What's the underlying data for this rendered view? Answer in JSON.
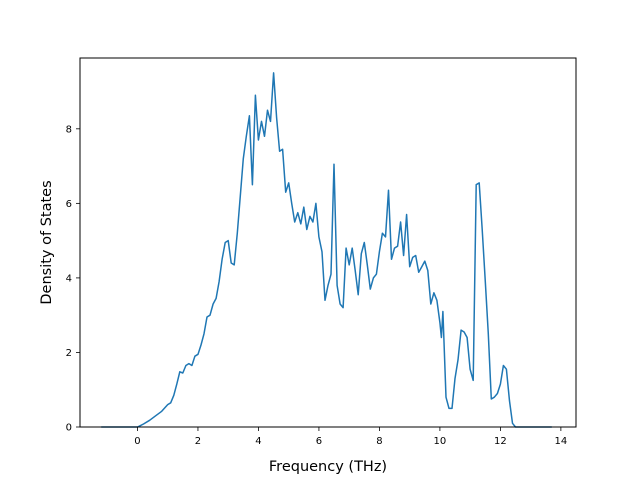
{
  "chart_data": {
    "type": "line",
    "title": "",
    "xlabel": "Frequency (THz)",
    "ylabel": "Density of States",
    "xlim": [
      -1.9,
      14.5
    ],
    "ylim": [
      0,
      9.9
    ],
    "xticks": [
      0,
      2,
      4,
      6,
      8,
      10,
      12,
      14
    ],
    "yticks": [
      0,
      2,
      4,
      6,
      8
    ],
    "grid": false,
    "legend": "none",
    "line_color": "#1f77b4",
    "series": [
      {
        "x": [
          -1.2,
          -1.0,
          -0.5,
          0.0,
          0.05,
          0.2,
          0.4,
          0.6,
          0.8,
          1.0,
          1.1,
          1.2,
          1.3,
          1.4,
          1.5,
          1.6,
          1.7,
          1.8,
          1.9,
          2.0,
          2.1,
          2.2,
          2.3,
          2.4,
          2.5,
          2.6,
          2.7,
          2.8,
          2.9,
          3.0,
          3.1,
          3.2,
          3.3,
          3.4,
          3.5,
          3.6,
          3.7,
          3.8,
          3.9,
          4.0,
          4.1,
          4.2,
          4.3,
          4.4,
          4.5,
          4.6,
          4.7,
          4.8,
          4.9,
          5.0,
          5.1,
          5.2,
          5.3,
          5.4,
          5.5,
          5.6,
          5.7,
          5.8,
          5.9,
          6.0,
          6.1,
          6.2,
          6.3,
          6.4,
          6.5,
          6.6,
          6.7,
          6.8,
          6.9,
          7.0,
          7.1,
          7.2,
          7.3,
          7.4,
          7.5,
          7.6,
          7.7,
          7.8,
          7.9,
          8.0,
          8.1,
          8.2,
          8.3,
          8.4,
          8.5,
          8.6,
          8.7,
          8.8,
          8.9,
          9.0,
          9.1,
          9.2,
          9.3,
          9.4,
          9.5,
          9.6,
          9.7,
          9.8,
          9.9,
          10.0,
          10.05,
          10.1,
          10.2,
          10.3,
          10.4,
          10.5,
          10.6,
          10.7,
          10.8,
          10.9,
          11.0,
          11.1,
          11.2,
          11.3,
          11.4,
          11.5,
          11.6,
          11.7,
          11.8,
          11.9,
          12.0,
          12.1,
          12.2,
          12.3,
          12.4,
          12.5,
          12.6,
          13.0,
          13.7
        ],
        "y": [
          0,
          0,
          0,
          0,
          0.02,
          0.08,
          0.18,
          0.3,
          0.42,
          0.6,
          0.65,
          0.85,
          1.15,
          1.48,
          1.45,
          1.65,
          1.7,
          1.65,
          1.9,
          1.95,
          2.2,
          2.5,
          2.95,
          3.0,
          3.3,
          3.45,
          3.9,
          4.5,
          4.95,
          5.0,
          4.4,
          4.35,
          5.2,
          6.2,
          7.2,
          7.8,
          8.35,
          6.5,
          8.9,
          7.7,
          8.2,
          7.8,
          8.5,
          8.2,
          9.5,
          8.3,
          7.4,
          7.45,
          6.3,
          6.55,
          6.0,
          5.5,
          5.75,
          5.45,
          5.9,
          5.3,
          5.65,
          5.5,
          6.0,
          5.1,
          4.7,
          3.4,
          3.8,
          4.1,
          7.05,
          3.8,
          3.3,
          3.2,
          4.8,
          4.35,
          4.8,
          4.2,
          3.55,
          4.65,
          4.95,
          4.35,
          3.7,
          4.0,
          4.1,
          4.7,
          5.2,
          5.1,
          6.35,
          4.5,
          4.8,
          4.85,
          5.5,
          4.6,
          5.7,
          4.3,
          4.55,
          4.6,
          4.15,
          4.3,
          4.45,
          4.2,
          3.3,
          3.6,
          3.4,
          2.8,
          2.4,
          3.1,
          0.8,
          0.5,
          0.5,
          1.3,
          1.8,
          2.6,
          2.55,
          2.4,
          1.55,
          1.25,
          6.5,
          6.55,
          5.3,
          3.9,
          2.5,
          0.75,
          0.8,
          0.9,
          1.15,
          1.65,
          1.55,
          0.7,
          0.1,
          0,
          0,
          0,
          0
        ]
      }
    ]
  }
}
